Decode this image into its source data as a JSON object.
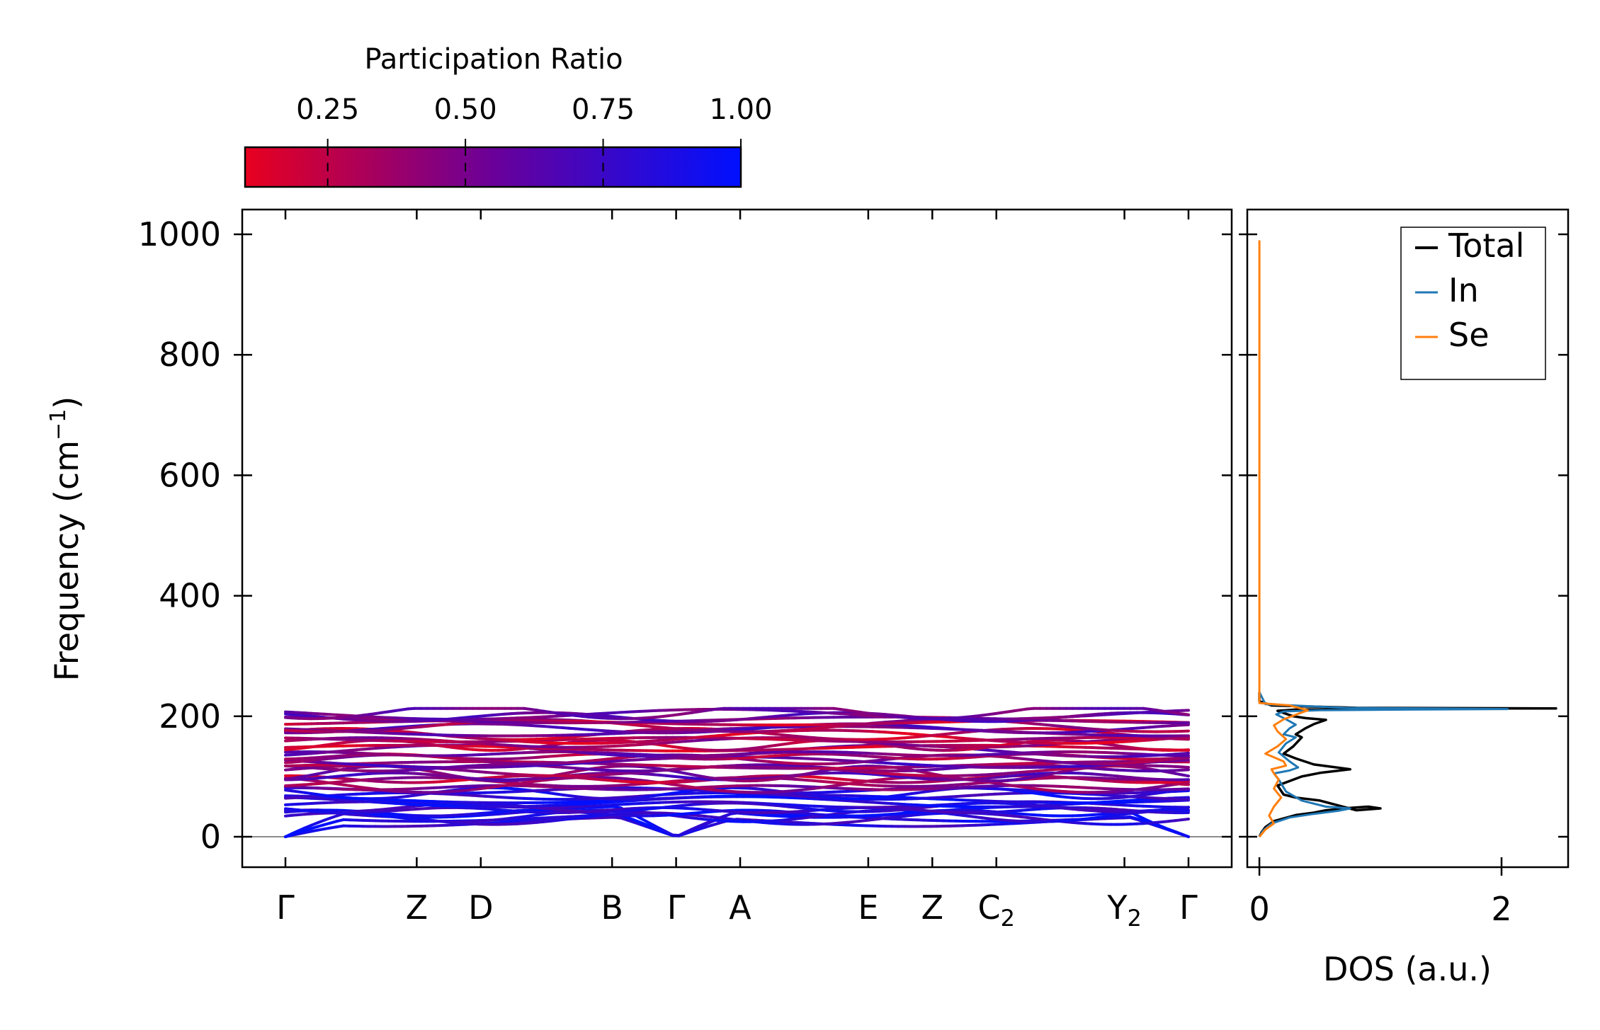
{
  "chart_data": [
    {
      "type": "line",
      "title": "",
      "xlabel": "",
      "ylabel_main": "Frequency (cm",
      "ylabel_sup": "−1",
      "ylabel_close": ")",
      "ylim": [
        -50,
        1040
      ],
      "yticks": [
        {
          "value": 0,
          "label": "0"
        },
        {
          "value": 200,
          "label": "200"
        },
        {
          "value": 400,
          "label": "400"
        },
        {
          "value": 600,
          "label": "600"
        },
        {
          "value": 800,
          "label": "800"
        },
        {
          "value": 1000,
          "label": "1000"
        }
      ],
      "kpath": [
        {
          "label": "Γ",
          "sub": "",
          "pos": 0
        },
        {
          "label": "Z",
          "sub": "",
          "pos": 2.05
        },
        {
          "label": "D",
          "sub": "",
          "pos": 3.05
        },
        {
          "label": "B",
          "sub": "",
          "pos": 5.1
        },
        {
          "label": "Γ",
          "sub": "",
          "pos": 6.1
        },
        {
          "label": "A",
          "sub": "",
          "pos": 7.1
        },
        {
          "label": "E",
          "sub": "",
          "pos": 9.1
        },
        {
          "label": "Z",
          "sub": "",
          "pos": 10.1
        },
        {
          "label": "C",
          "sub": "2",
          "pos": 11.1
        },
        {
          "label": "Y",
          "sub": "2",
          "pos": 13.1
        },
        {
          "label": "Γ",
          "sub": "",
          "pos": 14.1
        }
      ],
      "bands": {
        "count": 42,
        "frequency_range_cm1": [
          0,
          213
        ],
        "acoustic_branches": 3
      },
      "colorbar": {
        "title": "Participation Ratio",
        "range": [
          0.1,
          1.0
        ],
        "color_low": "#e8001f",
        "color_mid": "#6a0099",
        "color_high": "#0010ff",
        "ticks": [
          {
            "value": 0.25,
            "label": "0.25"
          },
          {
            "value": 0.5,
            "label": "0.50"
          },
          {
            "value": 0.75,
            "label": "0.75"
          },
          {
            "value": 1.0,
            "label": "1.00"
          }
        ]
      }
    },
    {
      "type": "line",
      "xlabel": "DOS (a.u.)",
      "xlim": [
        -0.1,
        2.55
      ],
      "ylim": [
        -50,
        1040
      ],
      "xticks": [
        {
          "value": 0,
          "label": "0"
        },
        {
          "value": 2,
          "label": "2"
        }
      ],
      "legend_position": "top-right",
      "series": [
        {
          "name": "Total",
          "color": "#000000",
          "x": [
            0,
            0.02,
            0.05,
            0.12,
            0.3,
            0.45,
            0.55,
            0.75,
            0.9,
            1.0,
            0.8,
            0.5,
            0.3,
            0.2,
            0.15,
            0.35,
            0.5,
            0.75,
            0.45,
            0.3,
            0.2,
            0.28,
            0.35,
            0.3,
            0.38,
            0.45,
            0.55,
            0.38,
            0.28,
            0.22,
            0.15,
            0.3,
            0.6,
            1.2,
            2.45,
            0.8,
            0.1,
            0.0,
            0.0
          ],
          "y": [
            0,
            8,
            16,
            26,
            36,
            40,
            44,
            48,
            50,
            47,
            44,
            60,
            65,
            70,
            85,
            100,
            106,
            112,
            120,
            130,
            138,
            150,
            165,
            170,
            180,
            187,
            194,
            197,
            200,
            204,
            209,
            211,
            212,
            213,
            213,
            214,
            218,
            225,
            240
          ]
        },
        {
          "name": "In",
          "color": "#1f77b4",
          "x": [
            0,
            0.03,
            0.1,
            0.25,
            0.45,
            0.65,
            0.75,
            0.55,
            0.35,
            0.22,
            0.16,
            0.12,
            0.25,
            0.32,
            0.25,
            0.16,
            0.22,
            0.3,
            0.2,
            0.25,
            0.3,
            0.22,
            0.14,
            0.2,
            0.5,
            1.2,
            2.05,
            0.7,
            0.05,
            0.0
          ],
          "y": [
            0,
            10,
            22,
            32,
            38,
            43,
            47,
            50,
            60,
            75,
            95,
            105,
            110,
            115,
            125,
            140,
            155,
            165,
            170,
            180,
            186,
            195,
            203,
            208,
            210,
            211,
            212,
            214,
            220,
            240
          ]
        },
        {
          "name": "Se",
          "color": "#ff7f0e",
          "x": [
            0,
            0.05,
            0.12,
            0.08,
            0.12,
            0.18,
            0.12,
            0.16,
            0.12,
            0.1,
            0.22,
            0.2,
            0.05,
            0.15,
            0.22,
            0.15,
            0.12,
            0.2,
            0.4,
            0.25,
            0.0,
            0.0
          ],
          "y": [
            0,
            12,
            22,
            35,
            50,
            65,
            80,
            95,
            105,
            112,
            118,
            125,
            138,
            150,
            162,
            175,
            185,
            195,
            210,
            218,
            222,
            990
          ]
        }
      ]
    }
  ]
}
